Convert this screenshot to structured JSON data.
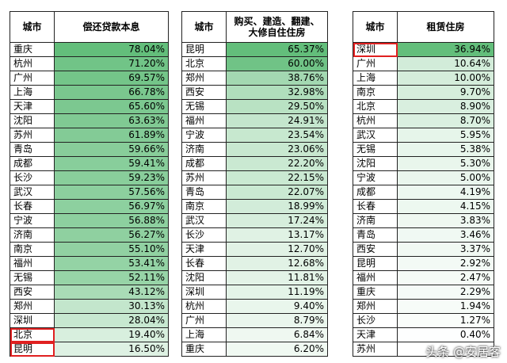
{
  "colors": {
    "max_green": "#63be7b",
    "min_color": "#ffffff",
    "highlight_border": "#e02020"
  },
  "table1": {
    "headers": [
      "城市",
      "偿还贷款本息"
    ],
    "max": 78.04,
    "rows": [
      [
        "重庆",
        "78.04%"
      ],
      [
        "杭州",
        "71.20%"
      ],
      [
        "广州",
        "69.57%"
      ],
      [
        "上海",
        "66.78%"
      ],
      [
        "天津",
        "65.60%"
      ],
      [
        "沈阳",
        "63.63%"
      ],
      [
        "苏州",
        "61.89%"
      ],
      [
        "青岛",
        "59.66%"
      ],
      [
        "成都",
        "59.41%"
      ],
      [
        "长沙",
        "59.23%"
      ],
      [
        "武汉",
        "57.56%"
      ],
      [
        "长春",
        "56.97%"
      ],
      [
        "宁波",
        "56.88%"
      ],
      [
        "济南",
        "56.27%"
      ],
      [
        "南京",
        "55.10%"
      ],
      [
        "福州",
        "53.41%"
      ],
      [
        "无锡",
        "52.11%"
      ],
      [
        "西安",
        "43.12%"
      ],
      [
        "郑州",
        "30.13%"
      ],
      [
        "深圳",
        "28.04%"
      ],
      [
        "北京",
        "19.40%"
      ],
      [
        "昆明",
        "16.50%"
      ]
    ],
    "highlighted": [
      "北京",
      "昆明"
    ]
  },
  "table2": {
    "headers": [
      "城市",
      "购买、建造、翻建、大修自住住房"
    ],
    "max": 65.37,
    "rows": [
      [
        "昆明",
        "65.37%"
      ],
      [
        "北京",
        "60.00%"
      ],
      [
        "郑州",
        "38.76%"
      ],
      [
        "西安",
        "32.98%"
      ],
      [
        "无锡",
        "29.50%"
      ],
      [
        "福州",
        "24.91%"
      ],
      [
        "宁波",
        "23.54%"
      ],
      [
        "济南",
        "23.06%"
      ],
      [
        "成都",
        "22.20%"
      ],
      [
        "苏州",
        "22.15%"
      ],
      [
        "青岛",
        "22.07%"
      ],
      [
        "南京",
        "18.99%"
      ],
      [
        "武汉",
        "17.24%"
      ],
      [
        "长沙",
        "13.17%"
      ],
      [
        "天津",
        "12.70%"
      ],
      [
        "长春",
        "12.68%"
      ],
      [
        "沈阳",
        "11.81%"
      ],
      [
        "深圳",
        "11.19%"
      ],
      [
        "杭州",
        "9.40%"
      ],
      [
        "广州",
        "8.79%"
      ],
      [
        "上海",
        "6.84%"
      ],
      [
        "重庆",
        "6.20%"
      ]
    ],
    "highlighted": []
  },
  "table3": {
    "headers": [
      "城市",
      "租赁住房"
    ],
    "max": 36.94,
    "rows": [
      [
        "深圳",
        "36.94%"
      ],
      [
        "广州",
        "10.64%"
      ],
      [
        "上海",
        "10.00%"
      ],
      [
        "南京",
        "9.70%"
      ],
      [
        "北京",
        "8.90%"
      ],
      [
        "杭州",
        "8.70%"
      ],
      [
        "武汉",
        "5.95%"
      ],
      [
        "无锡",
        "5.38%"
      ],
      [
        "沈阳",
        "5.30%"
      ],
      [
        "宁波",
        "5.00%"
      ],
      [
        "成都",
        "4.19%"
      ],
      [
        "长春",
        "4.15%"
      ],
      [
        "济南",
        "3.83%"
      ],
      [
        "青岛",
        "3.46%"
      ],
      [
        "西安",
        "3.37%"
      ],
      [
        "昆明",
        "2.92%"
      ],
      [
        "福州",
        "2.47%"
      ],
      [
        "重庆",
        "2.29%"
      ],
      [
        "郑州",
        "1.94%"
      ],
      [
        "长沙",
        "1.27%"
      ],
      [
        "天津",
        "0.40%"
      ],
      [
        "苏州",
        ""
      ]
    ],
    "highlighted": [
      "深圳"
    ]
  },
  "watermark": "头条 @安居客"
}
